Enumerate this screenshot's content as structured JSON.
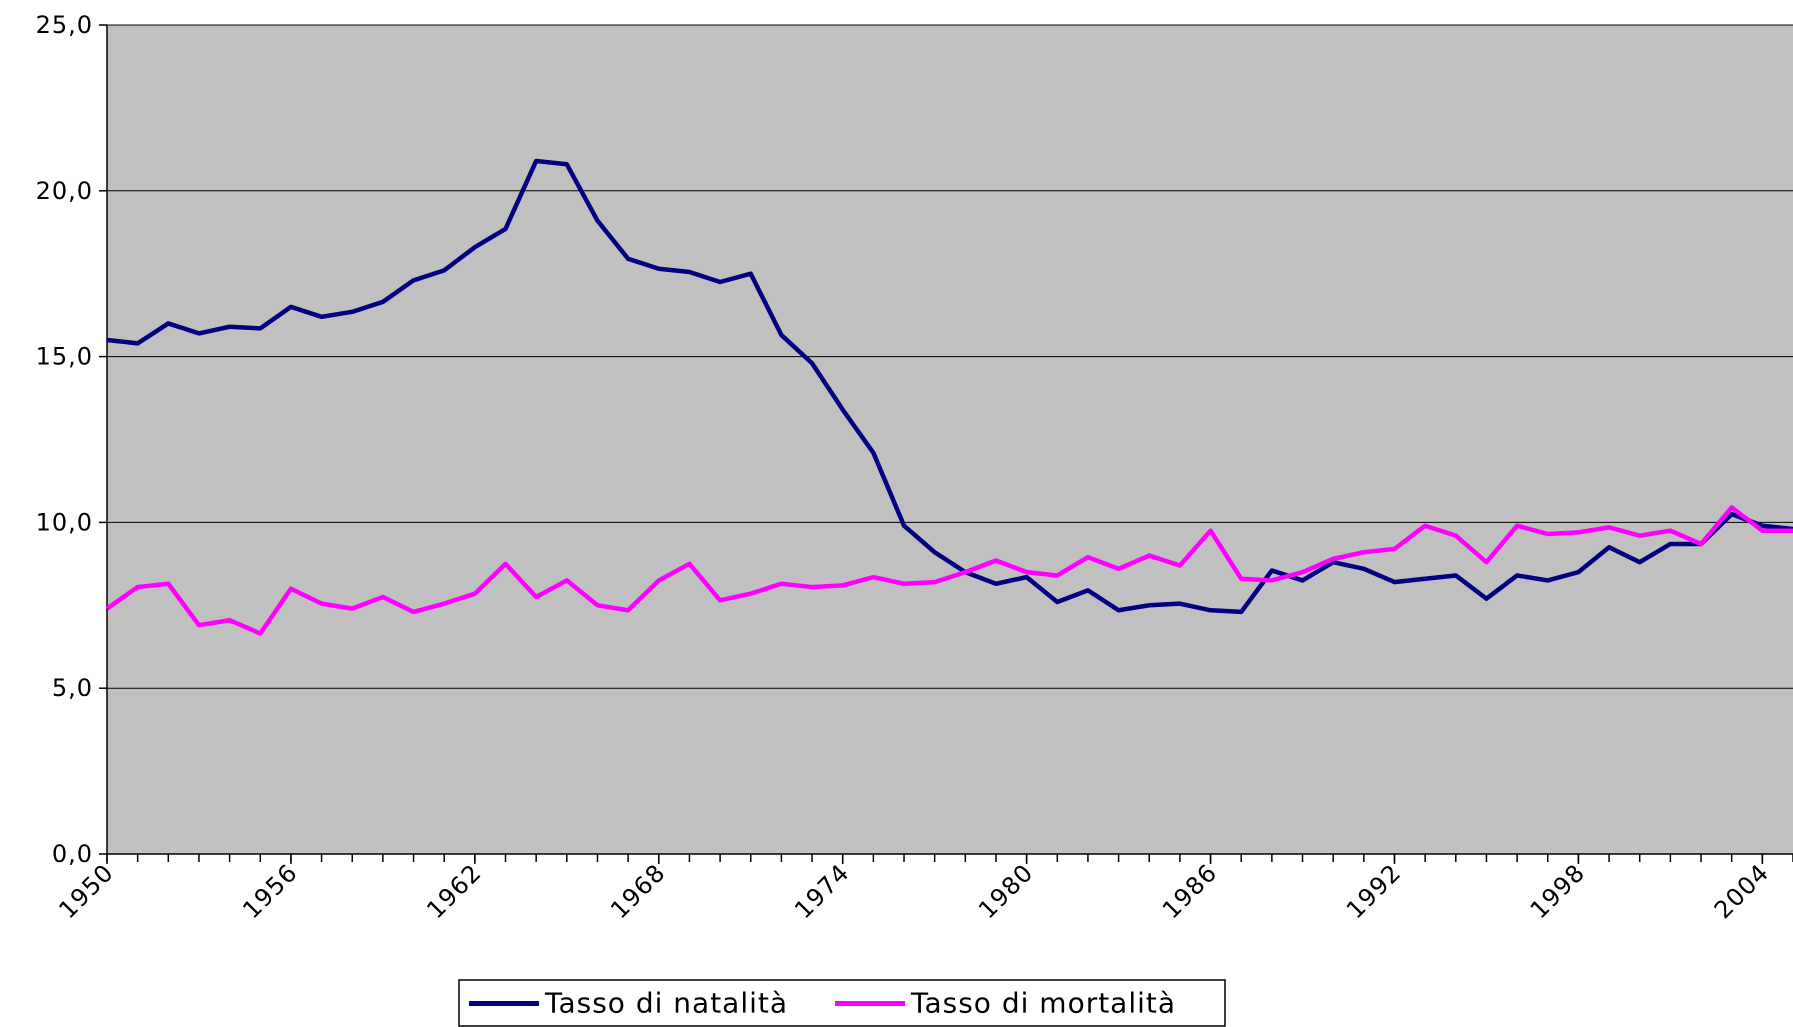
{
  "chart_data": {
    "type": "line",
    "x": [
      1950,
      1951,
      1952,
      1953,
      1954,
      1955,
      1956,
      1957,
      1958,
      1959,
      1960,
      1961,
      1962,
      1963,
      1964,
      1965,
      1966,
      1967,
      1968,
      1969,
      1970,
      1971,
      1972,
      1973,
      1974,
      1975,
      1976,
      1977,
      1978,
      1979,
      1980,
      1981,
      1982,
      1983,
      1984,
      1985,
      1986,
      1987,
      1988,
      1989,
      1990,
      1991,
      1992,
      1993,
      1994,
      1995,
      1996,
      1997,
      1998,
      1999,
      2000,
      2001,
      2002,
      2003,
      2004,
      2005
    ],
    "series": [
      {
        "name": "Tasso di natalità",
        "color": "#000080",
        "values": [
          15.5,
          15.4,
          16.0,
          15.7,
          15.9,
          15.85,
          16.5,
          16.2,
          16.35,
          16.65,
          17.3,
          17.6,
          18.3,
          18.85,
          20.9,
          20.8,
          19.1,
          17.95,
          17.65,
          17.55,
          17.25,
          17.5,
          15.65,
          14.8,
          13.4,
          12.1,
          9.9,
          9.1,
          8.5,
          8.15,
          8.35,
          7.6,
          7.95,
          7.35,
          7.5,
          7.55,
          7.35,
          7.3,
          8.55,
          8.25,
          8.8,
          8.6,
          8.2,
          8.3,
          8.4,
          7.7,
          8.4,
          8.25,
          8.5,
          9.25,
          8.8,
          9.35,
          9.35,
          10.25,
          9.9,
          9.8
        ]
      },
      {
        "name": "Tasso di mortalità",
        "color": "#ff00ff",
        "values": [
          7.4,
          8.05,
          8.15,
          6.9,
          7.05,
          6.65,
          8.0,
          7.55,
          7.4,
          7.75,
          7.3,
          7.55,
          7.85,
          8.75,
          7.75,
          8.25,
          7.5,
          7.35,
          8.25,
          8.75,
          7.65,
          7.85,
          8.15,
          8.05,
          8.1,
          8.35,
          8.15,
          8.2,
          8.5,
          8.85,
          8.5,
          8.4,
          8.95,
          8.6,
          9.0,
          8.7,
          9.75,
          8.3,
          8.25,
          8.5,
          8.9,
          9.1,
          9.2,
          9.9,
          9.6,
          8.8,
          9.9,
          9.65,
          9.7,
          9.85,
          9.6,
          9.75,
          9.35,
          10.45,
          9.75,
          9.75
        ]
      }
    ],
    "xlim": [
      1950,
      2005
    ],
    "xticks": [
      1950,
      1956,
      1962,
      1968,
      1974,
      1980,
      1986,
      1992,
      1998,
      2004
    ],
    "ylim": [
      0,
      25
    ],
    "yticks": [
      {
        "value": 0,
        "label": "0,0"
      },
      {
        "value": 5,
        "label": "5,0"
      },
      {
        "value": 10,
        "label": "10,0"
      },
      {
        "value": 15,
        "label": "15,0"
      },
      {
        "value": 20,
        "label": "20,0"
      },
      {
        "value": 25,
        "label": "25,0"
      }
    ],
    "grid": true,
    "background": "#c0c0c0",
    "legend": "bottom"
  }
}
